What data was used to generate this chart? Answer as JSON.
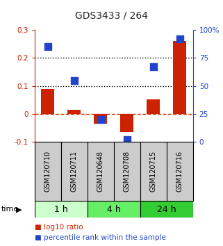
{
  "title": "GDS3433 / 264",
  "categories": [
    "GSM120710",
    "GSM120711",
    "GSM120648",
    "GSM120708",
    "GSM120715",
    "GSM120716"
  ],
  "log10_ratio": [
    0.09,
    0.015,
    -0.035,
    -0.065,
    0.052,
    0.26
  ],
  "percentile_rank_pct": [
    85,
    55,
    20,
    2,
    67,
    92
  ],
  "ylim_left": [
    -0.1,
    0.3
  ],
  "ylim_right": [
    0,
    100
  ],
  "yticks_left": [
    -0.1,
    0.0,
    0.1,
    0.2,
    0.3
  ],
  "yticks_right": [
    0,
    25,
    50,
    75,
    100
  ],
  "ytick_labels_left": [
    "-0.1",
    "0",
    "0.1",
    "0.2",
    "0.3"
  ],
  "ytick_labels_right": [
    "0",
    "25",
    "50",
    "75",
    "100%"
  ],
  "hlines_dotted": [
    0.1,
    0.2
  ],
  "hline_dashed_color": "#cc3300",
  "time_groups": [
    {
      "label": "1 h",
      "cols": [
        0,
        1
      ],
      "color": "#ccffcc"
    },
    {
      "label": "4 h",
      "cols": [
        2,
        3
      ],
      "color": "#66ee66"
    },
    {
      "label": "24 h",
      "cols": [
        4,
        5
      ],
      "color": "#33cc33"
    }
  ],
  "bar_color": "#cc2200",
  "dot_color": "#2244cc",
  "bar_width": 0.5,
  "dot_size": 45,
  "legend_items": [
    "log10 ratio",
    "percentile rank within the sample"
  ],
  "legend_colors": [
    "#cc2200",
    "#2244cc"
  ],
  "time_label": "time",
  "title_color": "#222222",
  "left_axis_color": "#cc2200",
  "right_axis_color": "#2244cc",
  "background_color": "#ffffff",
  "label_bg": "#cccccc",
  "label_border": "#000000"
}
